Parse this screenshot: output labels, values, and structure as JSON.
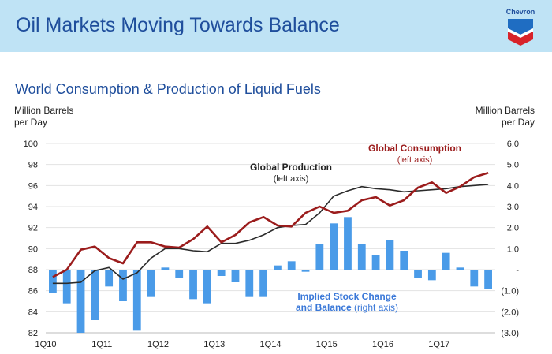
{
  "header": {
    "title": "Oil Markets Moving Towards Balance",
    "logo_text": "Chevron"
  },
  "subtitle": "World Consumption & Production of Liquid Fuels",
  "left_unit": [
    "Million Barrels",
    "per Day"
  ],
  "right_unit": [
    "Million Barrels",
    "per Day"
  ],
  "colors": {
    "banner": "#bfe3f5",
    "title": "#1f4e9c",
    "consumption": "#9b1c1c",
    "production": "#2b2b2b",
    "bars": "#4a9be8",
    "annotation_blue": "#3a78d8"
  },
  "chart_data": {
    "type": "line+bar",
    "x_labels": [
      "1Q10",
      "1Q11",
      "1Q12",
      "1Q13",
      "1Q14",
      "1Q15",
      "1Q16",
      "1Q17"
    ],
    "left_axis": {
      "ticks": [
        "100",
        "98",
        "96",
        "94",
        "92",
        "90",
        "88",
        "86",
        "84",
        "82"
      ],
      "ylim": [
        82,
        100
      ]
    },
    "right_axis": {
      "ticks": [
        "6.0",
        "5.0",
        "4.0",
        "3.0",
        "2.0",
        "1.0",
        "-",
        "(1.0)",
        "(2.0)",
        "(3.0)"
      ],
      "ylim": [
        -3,
        6
      ]
    },
    "series": [
      {
        "name": "Global Consumption",
        "axis_note": "(left axis)",
        "values": [
          87.3,
          88.0,
          89.9,
          90.2,
          89.1,
          88.6,
          90.6,
          90.6,
          90.2,
          90.1,
          90.9,
          92.1,
          90.6,
          91.3,
          92.5,
          93.0,
          92.2,
          92.1,
          93.4,
          94.0,
          93.4,
          93.6,
          94.6,
          94.9,
          94.1,
          94.6,
          95.8,
          96.3,
          95.3,
          95.9,
          96.8,
          97.2
        ]
      },
      {
        "name": "Global Production",
        "axis_note": "(left axis)",
        "values": [
          86.7,
          86.7,
          86.8,
          87.9,
          88.2,
          87.1,
          87.7,
          89.1,
          90.0,
          90.0,
          89.8,
          89.7,
          90.5,
          90.5,
          90.8,
          91.3,
          92.0,
          92.2,
          92.3,
          93.4,
          95.0,
          95.5,
          95.9,
          95.7,
          95.6,
          95.4,
          95.5,
          95.6,
          95.7,
          95.9,
          96.0,
          96.1
        ]
      },
      {
        "name": "Implied Stock Change and Balance",
        "axis_note": "(right axis)",
        "kind": "bar",
        "values": [
          -1.1,
          -1.6,
          -3.0,
          -2.4,
          -0.8,
          -1.5,
          -2.9,
          -1.3,
          0.1,
          -0.4,
          -1.4,
          -1.6,
          -0.3,
          -0.6,
          -1.3,
          -1.3,
          0.2,
          0.4,
          -0.1,
          1.2,
          2.2,
          2.5,
          1.2,
          0.7,
          1.4,
          0.9,
          -0.4,
          -0.5,
          0.8,
          0.1,
          -0.8,
          -0.9
        ]
      }
    ],
    "grid": true,
    "legend": "inline annotations"
  }
}
